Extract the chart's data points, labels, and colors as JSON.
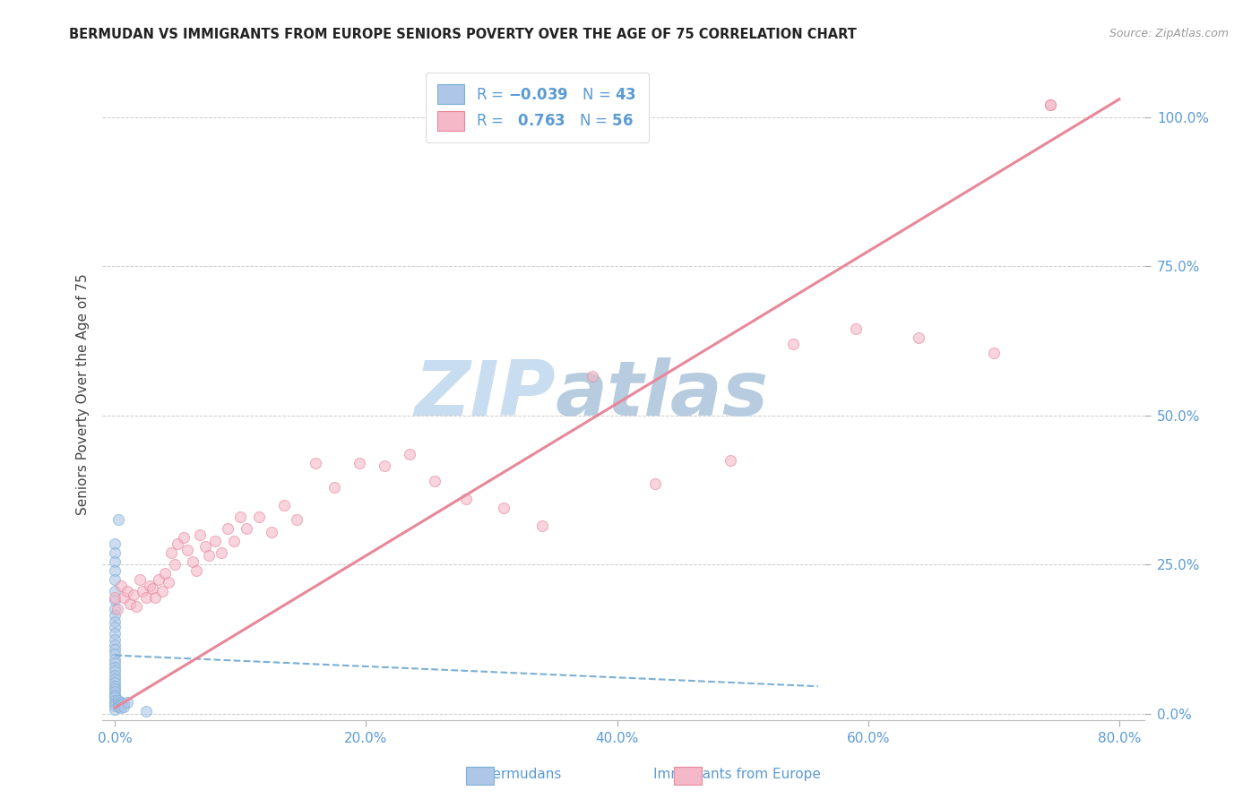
{
  "title": "BERMUDAN VS IMMIGRANTS FROM EUROPE SENIORS POVERTY OVER THE AGE OF 75 CORRELATION CHART",
  "source": "Source: ZipAtlas.com",
  "ylabel": "Seniors Poverty Over the Age of 75",
  "x_tick_vals": [
    0.0,
    0.2,
    0.4,
    0.6,
    0.8
  ],
  "y_tick_vals": [
    0.0,
    0.25,
    0.5,
    0.75,
    1.0
  ],
  "x_tick_labels": [
    "0.0%",
    "20.0%",
    "40.0%",
    "60.0%",
    "80.0%"
  ],
  "y_tick_labels": [
    "0.0%",
    "25.0%",
    "50.0%",
    "75.0%",
    "100.0%"
  ],
  "x_range": [
    -0.01,
    0.82
  ],
  "y_range": [
    -0.01,
    1.08
  ],
  "bermudans_scatter_x": [
    0.0,
    0.0,
    0.0,
    0.0,
    0.0,
    0.0,
    0.0,
    0.0,
    0.0,
    0.0,
    0.0,
    0.0,
    0.0,
    0.0,
    0.0,
    0.0,
    0.0,
    0.0,
    0.0,
    0.0,
    0.0,
    0.0,
    0.0,
    0.0,
    0.0,
    0.0,
    0.0,
    0.0,
    0.0,
    0.0,
    0.0,
    0.0,
    0.003,
    0.003,
    0.003,
    0.005,
    0.005,
    0.005,
    0.007,
    0.007,
    0.01,
    0.025,
    0.003
  ],
  "bermudans_scatter_y": [
    0.285,
    0.27,
    0.255,
    0.24,
    0.225,
    0.205,
    0.19,
    0.175,
    0.165,
    0.155,
    0.145,
    0.135,
    0.125,
    0.115,
    0.108,
    0.1,
    0.092,
    0.085,
    0.078,
    0.072,
    0.065,
    0.058,
    0.052,
    0.047,
    0.042,
    0.037,
    0.032,
    0.028,
    0.022,
    0.018,
    0.014,
    0.008,
    0.022,
    0.017,
    0.012,
    0.02,
    0.015,
    0.01,
    0.018,
    0.012,
    0.02,
    0.005,
    0.325
  ],
  "immigrants_scatter_x": [
    0.0,
    0.002,
    0.005,
    0.007,
    0.01,
    0.012,
    0.015,
    0.017,
    0.02,
    0.022,
    0.025,
    0.028,
    0.03,
    0.032,
    0.035,
    0.038,
    0.04,
    0.043,
    0.045,
    0.048,
    0.05,
    0.055,
    0.058,
    0.062,
    0.065,
    0.068,
    0.072,
    0.075,
    0.08,
    0.085,
    0.09,
    0.095,
    0.1,
    0.105,
    0.115,
    0.125,
    0.135,
    0.145,
    0.16,
    0.175,
    0.195,
    0.215,
    0.235,
    0.255,
    0.28,
    0.31,
    0.34,
    0.38,
    0.43,
    0.49,
    0.54,
    0.59,
    0.64,
    0.7,
    0.745,
    0.745
  ],
  "immigrants_scatter_y": [
    0.195,
    0.175,
    0.215,
    0.195,
    0.205,
    0.185,
    0.2,
    0.18,
    0.225,
    0.205,
    0.195,
    0.215,
    0.21,
    0.195,
    0.225,
    0.205,
    0.235,
    0.22,
    0.27,
    0.25,
    0.285,
    0.295,
    0.275,
    0.255,
    0.24,
    0.3,
    0.28,
    0.265,
    0.29,
    0.27,
    0.31,
    0.29,
    0.33,
    0.31,
    0.33,
    0.305,
    0.35,
    0.325,
    0.42,
    0.38,
    0.42,
    0.415,
    0.435,
    0.39,
    0.36,
    0.345,
    0.315,
    0.565,
    0.385,
    0.425,
    0.62,
    0.645,
    0.63,
    0.605,
    1.02,
    1.02
  ],
  "bermudans_line_x": [
    0.0,
    0.56
  ],
  "bermudans_line_y": [
    0.098,
    0.046
  ],
  "immigrants_line_x": [
    0.0,
    0.8
  ],
  "immigrants_line_y": [
    0.01,
    1.03
  ],
  "scatter_alpha": 0.6,
  "scatter_size": 75,
  "bermudans_color": "#7bafd4",
  "bermudans_fill": "#aec6e8",
  "immigrants_color": "#e8879a",
  "immigrants_fill": "#f4b8c8",
  "grid_color": "#cccccc",
  "background_color": "#ffffff",
  "watermark_zip": "ZIP",
  "watermark_atlas": "atlas",
  "watermark_color": "#d0e4f0"
}
